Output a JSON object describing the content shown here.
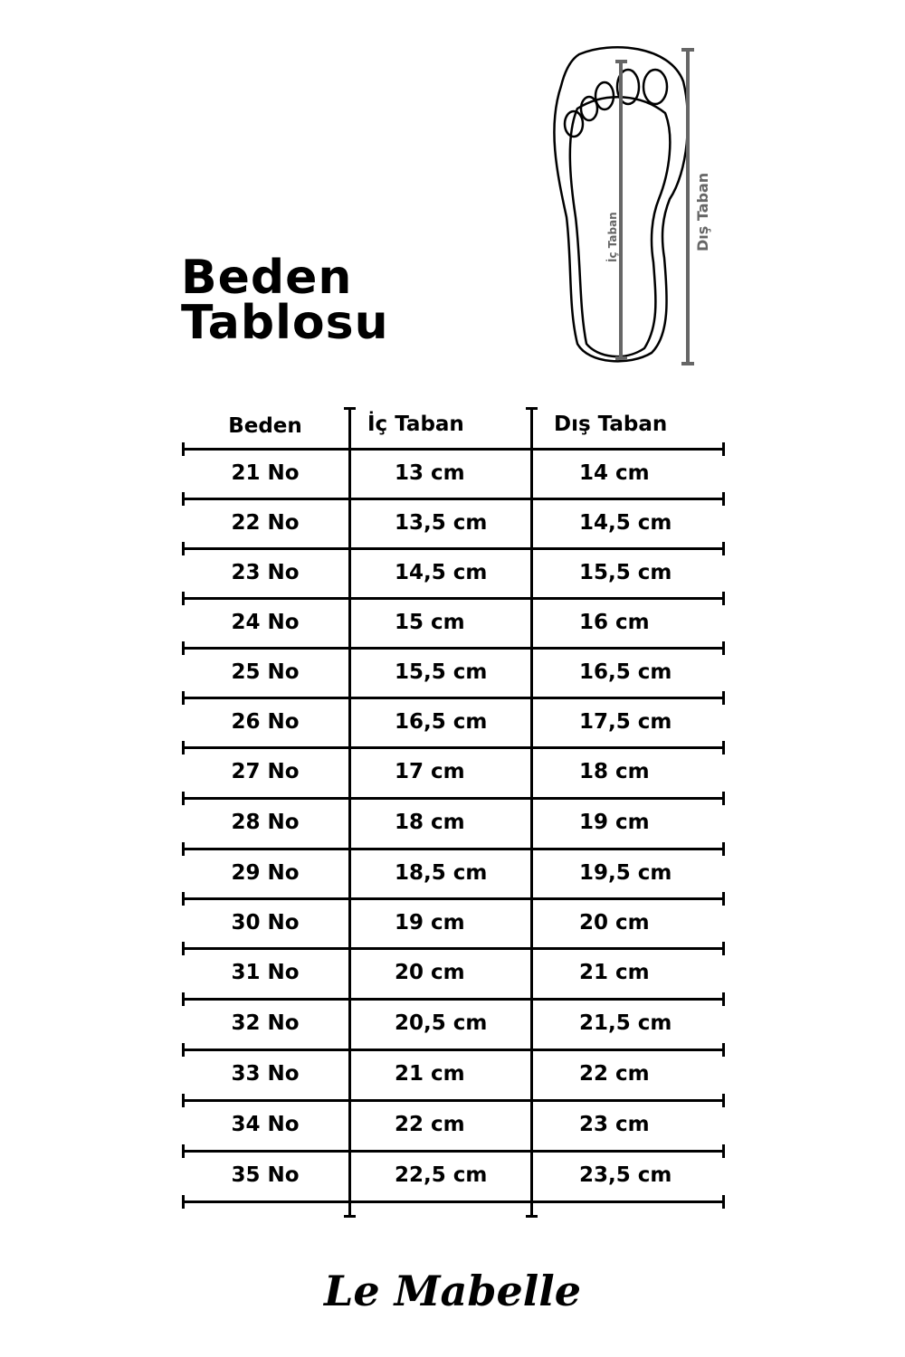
{
  "title": {
    "line1": "Beden",
    "line2": "Tablosu"
  },
  "diagram": {
    "inner_label": "İç Taban",
    "outer_label": "Dış Taban",
    "line_color": "#666666"
  },
  "table": {
    "headers": [
      "Beden",
      "İç Taban",
      "Dış Taban"
    ],
    "rows": [
      [
        "21 No",
        "13 cm",
        "14 cm"
      ],
      [
        "22 No",
        "13,5 cm",
        "14,5 cm"
      ],
      [
        "23 No",
        "14,5 cm",
        "15,5 cm"
      ],
      [
        "24 No",
        "15 cm",
        "16 cm"
      ],
      [
        "25 No",
        "15,5 cm",
        "16,5 cm"
      ],
      [
        "26 No",
        "16,5 cm",
        "17,5 cm"
      ],
      [
        "27 No",
        "17 cm",
        "18 cm"
      ],
      [
        "28 No",
        "18 cm",
        "19 cm"
      ],
      [
        "29 No",
        "18,5 cm",
        "19,5 cm"
      ],
      [
        "30 No",
        "19 cm",
        "20 cm"
      ],
      [
        "31 No",
        "20 cm",
        "21 cm"
      ],
      [
        "32 No",
        "20,5 cm",
        "21,5 cm"
      ],
      [
        "33 No",
        "21 cm",
        "22 cm"
      ],
      [
        "34 No",
        "22 cm",
        "23 cm"
      ],
      [
        "35 No",
        "22,5 cm",
        "23,5 cm"
      ]
    ]
  },
  "brand": "Le Mabelle"
}
